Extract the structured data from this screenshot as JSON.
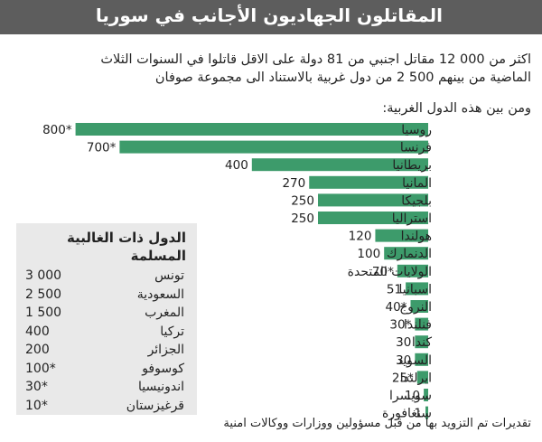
{
  "header": {
    "title": "المقاتلون الجهاديون الأجانب في سوريا"
  },
  "intro": {
    "line1": "اكثر من 000 12 مقاتل اجنبي من 81 دولة على الاقل قاتلوا في السنوات الثلاث",
    "line2": "الماضية من بينهم 500 2 من دول غربية بالاستناد الى مجموعة صوفان"
  },
  "subtitle": "ومن بين هذه الدول الغربية:",
  "chart_data": {
    "type": "bar",
    "orientation": "horizontal",
    "bar_color": "#3d9b6b",
    "categories": [
      "روسيا",
      "فرنسا",
      "بريطانيا",
      "المانيا",
      "بلجيكا",
      "استراليا",
      "هولندا",
      "الدنمارك",
      "الولايات المتحدة",
      "اسبانيا",
      "النروج",
      "فنلندا",
      "كندا",
      "السويد",
      "ايرلندا",
      "سويسرا",
      "سنغافورة"
    ],
    "values": [
      800,
      700,
      400,
      270,
      250,
      250,
      120,
      100,
      70,
      51,
      40,
      30,
      30,
      30,
      25,
      10,
      1
    ],
    "value_labels": [
      "800*",
      "700*",
      "400",
      "270",
      "250",
      "250",
      "120",
      "100",
      "70*",
      "51",
      "40*",
      "30*",
      "30",
      "30",
      "25*",
      "10",
      "1"
    ]
  },
  "sidebar_box": {
    "title": "الدول ذات الغالبية المسلمة",
    "rows": [
      {
        "country": "تونس",
        "value": "3 000"
      },
      {
        "country": "السعودية",
        "value": "2 500"
      },
      {
        "country": "المغرب",
        "value": "1 500"
      },
      {
        "country": "تركيا",
        "value": "400"
      },
      {
        "country": "الجزائر",
        "value": "200"
      },
      {
        "country": "كوسوفو",
        "value": "100*"
      },
      {
        "country": "اندونيسيا",
        "value": "30*"
      },
      {
        "country": "قرغيزستان",
        "value": "10*"
      }
    ]
  },
  "footer": "تقديرات تم التزويد بها من قبل مسؤولين ووزارات ووكالات امنية"
}
